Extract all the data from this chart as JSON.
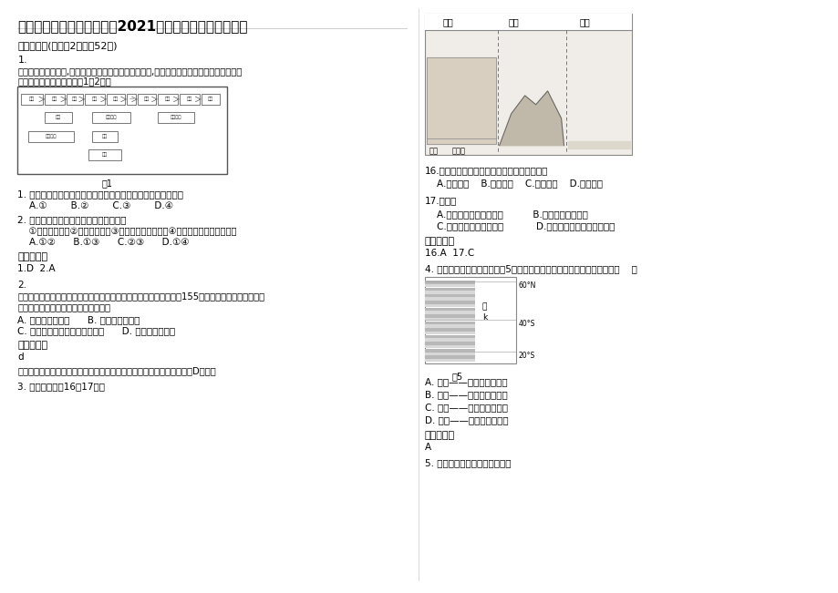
{
  "title": "山东省青岛市即墨王村中学2021年高一地理测试题含解析",
  "bg_color": "#ffffff",
  "text_color": "#000000",
  "figsize": [
    9.2,
    6.51
  ],
  "dpi": 100,
  "section1_header": "一、选择题(每小题2分，共52分)",
  "q1_label": "1.",
  "q1_line1": "在我国广大农村地区,随着生活能源消费结构的逐步改善,秸秆利用问题日益突出。下图是秸秆",
  "q1_line2": "利用方式示意图，读图回答1～2题。",
  "q1_text": "1. 既能提供生活能源，又有利于提高土壤肥力的秸秆利用方式是",
  "q1_options": "    A.①        B.②        C.③        D.④",
  "q2_text": "2. 在农田里大面积焚烧秸秆的影响主要是",
  "q2_options": "    ①引起大气污染②造成资源浪费③增加土壤有机质含量④不利于农村能源结构调整",
  "q2_opts2": "    A.①②      B.①③      C.②③      D.①④",
  "ans_header1": "参考答案：",
  "ans1": "1.D  2.A",
  "q2_label": "2.",
  "q3_line1": "科学家在太阳系外部发现了一个和地球非常相似的行星其行星编号为155，是太阳系外最小的行星，",
  "q3_line2": "它虽然体积小，我们称之为行星是因为",
  "q3_opt_a": "A. 围绕着太阳公转      B. 体积和地球相同",
  "q3_opt_b": "C. 和恒星的距离为一个天文单位      D. 围绕着恒星公转",
  "ans2_header": "参考答案：",
  "ans2_val": "d",
  "ans2_explain": "行星是绕着恒星运动的，这颗行星应绕着它所在天体系统的恒星运行，选D正确。",
  "q4_num": "3. 读下图，回答16～17题。",
  "right_q16": "16.该地形的发育主要是受何种外力影响形成的",
  "right_q16_opts": "    A.流水侵蚀    B.风力侵蚀    C.冰川侵蚀    D.流水沉积",
  "right_q17": "17.该地貌",
  "right_q17_opts_a": "    A.是流水机械作用的结果          B.与化学作用的无关",
  "right_q17_opts_b": "    C.主要形成于石灰岩地区           D.形成于各地带的岩浆岩地区",
  "right_ans_header": "参考答案：",
  "right_ans_val": "16.A  17.C",
  "right_q4_intro": "4. 根据世界洋流分布规律，图5中洋流的性质和所属大洋环流的流向应是（    ）",
  "right_fig5_label": "图5",
  "right_q4_opt_a": "A. 寒流——顺时针方向流动",
  "right_q4_opt_b": "B. 寒流——逆时针方向流动",
  "right_q4_opt_c": "C. 暖流——顺时针方向流动",
  "right_q4_opt_d": "D. 暖流——逆时针方向流动",
  "right_ans2_header": "参考答案：",
  "right_ans2_val": "A",
  "right_q5": "5. 读六大板块分布示意图，回答",
  "terrain_label_gaoyuan": "高原",
  "terrain_label_shanqu": "山区",
  "terrain_label_pingyuan": "平原",
  "terrain_label_rongdong": "溶洞",
  "terrain_label_dixiahe": "地下河",
  "lat_60N": "60°N",
  "lat_40S": "40°S",
  "lat_20S": "20°S",
  "ocean_da": "大",
  "ocean_k": "k"
}
